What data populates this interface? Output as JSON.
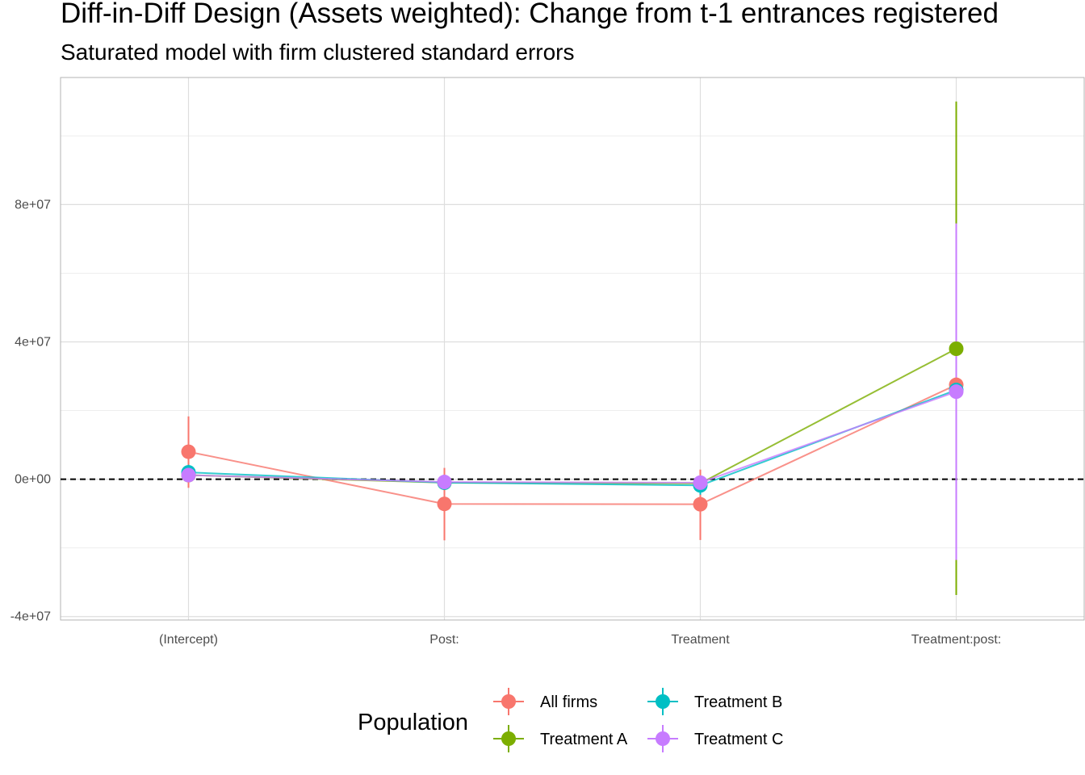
{
  "chart_data": {
    "type": "scatter",
    "title": "Diff-in-Diff Design (Assets weighted): Change from t-1 entrances registered",
    "subtitle": "Saturated model with firm clustered standard errors",
    "xlabel": "",
    "ylabel": "",
    "categories": [
      "(Intercept)",
      "Post:",
      "Treatment",
      "Treatment:post:"
    ],
    "y_ticks": [
      -40000000,
      0,
      40000000,
      80000000
    ],
    "y_tick_labels": [
      "-4e+07",
      "0e+00",
      "4e+07",
      "8e+07"
    ],
    "ylim": [
      -41000000,
      117000000
    ],
    "reference_line": 0,
    "grid": true,
    "legend": {
      "title": "Population",
      "position": "bottom"
    },
    "series": [
      {
        "name": "All firms",
        "color": "#F8766D",
        "values": [
          8000000,
          -7200000,
          -7300000,
          27500000
        ],
        "lower": [
          -2500000,
          -17800000,
          -17700000,
          25800000
        ],
        "upper": [
          18300000,
          3300000,
          2800000,
          29300000
        ]
      },
      {
        "name": "Treatment A",
        "color": "#7CAE00",
        "values": [
          1200000,
          -1000000,
          -1200000,
          38000000
        ],
        "lower": [
          300000,
          -2200000,
          -2400000,
          -33700000
        ],
        "upper": [
          2100000,
          200000,
          0,
          110000000
        ]
      },
      {
        "name": "Treatment B",
        "color": "#00BFC4",
        "values": [
          2000000,
          -1000000,
          -1800000,
          26000000
        ],
        "lower": [
          -200000,
          -2400000,
          -4500000,
          24200000
        ],
        "upper": [
          4200000,
          400000,
          900000,
          27800000
        ]
      },
      {
        "name": "Treatment C",
        "color": "#C77CFF",
        "values": [
          1200000,
          -800000,
          -1000000,
          25500000
        ],
        "lower": [
          200000,
          -1800000,
          -2300000,
          -23500000
        ],
        "upper": [
          2200000,
          200000,
          300000,
          74500000
        ]
      }
    ]
  }
}
